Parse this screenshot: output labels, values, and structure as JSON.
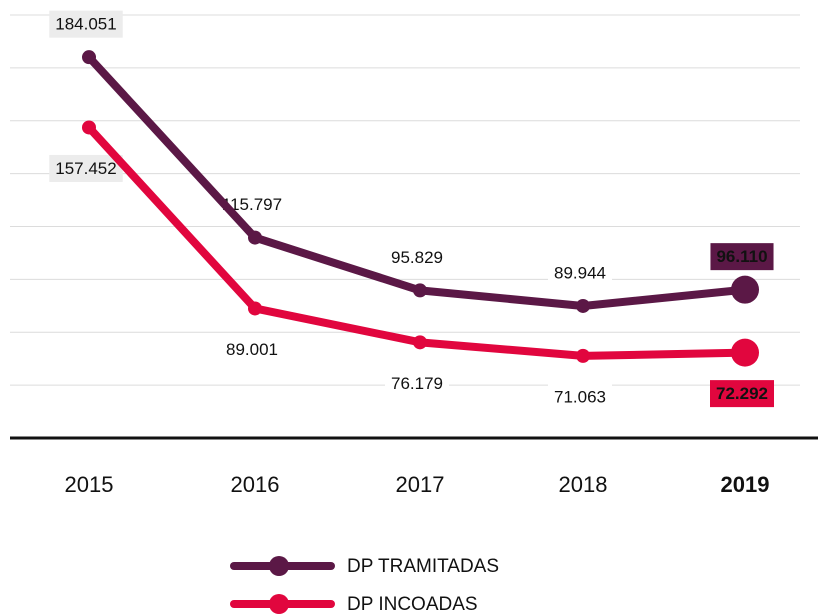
{
  "chart_data": {
    "type": "line",
    "categories": [
      "2015",
      "2016",
      "2017",
      "2018",
      "2019"
    ],
    "series": [
      {
        "name": "DP TRAMITADAS",
        "color": "#5b1846",
        "values": [
          184051,
          115797,
          95829,
          89944,
          96110
        ],
        "value_labels": [
          "184.051",
          "115.797",
          "95.829",
          "89.944",
          "96.110"
        ]
      },
      {
        "name": "DP INCOADAS",
        "color": "#e1063e",
        "values": [
          157452,
          89001,
          76179,
          71063,
          72292
        ],
        "value_labels": [
          "157.452",
          "89.001",
          "76.179",
          "71.063",
          "72.292"
        ]
      }
    ],
    "ylim": [
      40000,
      200000
    ],
    "yticks": [
      60000,
      80000,
      100000,
      120000,
      140000,
      160000,
      180000,
      200000
    ],
    "grid": true
  }
}
